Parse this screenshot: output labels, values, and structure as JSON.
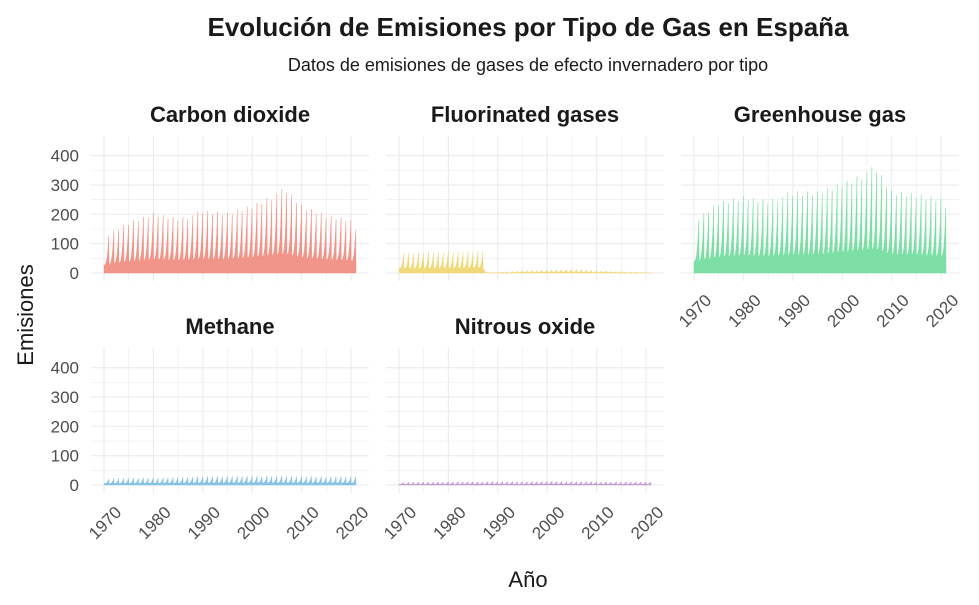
{
  "chart_data": {
    "type": "area",
    "title": "Evolución de Emisiones por Tipo de Gas en España",
    "subtitle": "Datos de emisiones de gases de efecto invernadero por tipo",
    "xlabel": "Año",
    "ylabel": "Emisiones",
    "xlim": [
      1970,
      2021
    ],
    "ylim": [
      0,
      440
    ],
    "x_ticks": [
      "1970",
      "1980",
      "1990",
      "2000",
      "2010",
      "2020"
    ],
    "y_ticks": [
      "0",
      "100",
      "200",
      "300",
      "400"
    ],
    "grid": true,
    "legend": "none",
    "series": [
      {
        "name": "Carbon dioxide",
        "color": "#f08a7e",
        "years": [
          1970,
          1975,
          1980,
          1985,
          1990,
          1995,
          2000,
          2005,
          2007,
          2010,
          2015,
          2020,
          2021
        ],
        "values": [
          125,
          175,
          210,
          195,
          215,
          210,
          240,
          285,
          290,
          235,
          205,
          190,
          160
        ]
      },
      {
        "name": "Fluorinated gases",
        "color": "#f0d66e",
        "years": [
          1970,
          1980,
          1987,
          1987.5,
          1990,
          1997,
          2005,
          2010,
          2020
        ],
        "values": [
          70,
          75,
          80,
          2,
          3,
          10,
          14,
          8,
          2
        ]
      },
      {
        "name": "Greenhouse gas",
        "color": "#6fdc9c",
        "years": [
          1970,
          1975,
          1980,
          1985,
          1990,
          1995,
          2000,
          2005,
          2007,
          2010,
          2015,
          2020,
          2021
        ],
        "values": [
          180,
          245,
          270,
          260,
          280,
          285,
          320,
          360,
          365,
          285,
          280,
          265,
          245
        ]
      },
      {
        "name": "Methane",
        "color": "#7bbde6",
        "years": [
          1970,
          1980,
          1990,
          2000,
          2005,
          2010,
          2020
        ],
        "values": [
          22,
          26,
          30,
          32,
          33,
          30,
          30
        ]
      },
      {
        "name": "Nitrous oxide",
        "color": "#bf94d0",
        "years": [
          1970,
          1980,
          1990,
          1995,
          2000,
          2010,
          2020
        ],
        "values": [
          10,
          12,
          13,
          12,
          14,
          12,
          12
        ]
      }
    ]
  }
}
